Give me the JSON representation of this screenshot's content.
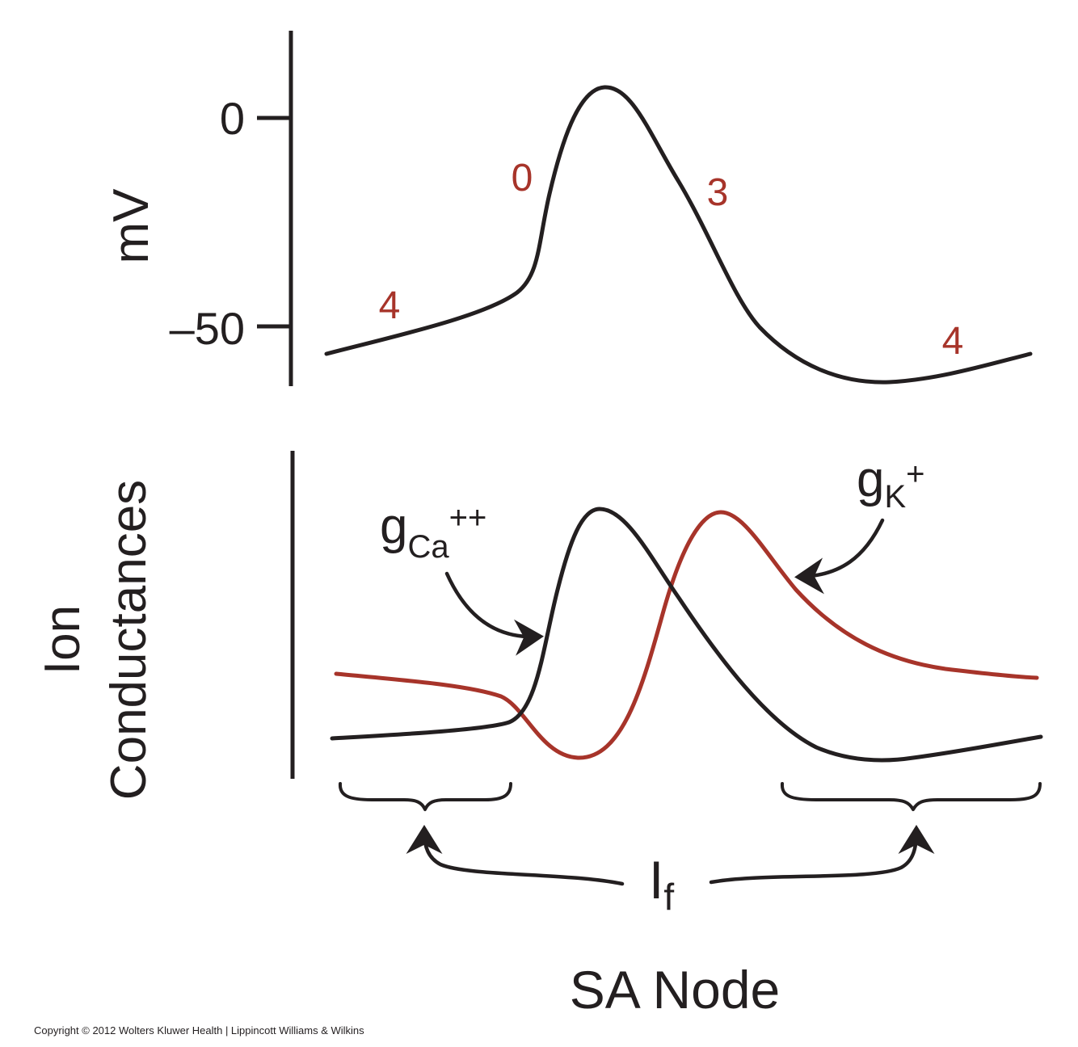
{
  "top_panel": {
    "y_axis_label": "mV",
    "tick_0": "0",
    "tick_neg50": "–50",
    "phase_labels": {
      "phase4_left": "4",
      "phase0": "0",
      "phase3": "3",
      "phase4_right": "4"
    }
  },
  "bottom_panel": {
    "y_axis_label_line1": "Ion",
    "y_axis_label_line2": "Conductances",
    "gca": {
      "main": "g",
      "sub": "Ca",
      "sup": "++"
    },
    "gk": {
      "main": "g",
      "sub": "K",
      "sup": "+"
    },
    "if_label": {
      "main": "I",
      "sub": "f"
    }
  },
  "title": "SA Node",
  "copyright": "Copyright © 2012 Wolters Kluwer Health | Lippincott Williams & Wilkins",
  "colors": {
    "black": "#231f20",
    "red": "#a7342a"
  }
}
